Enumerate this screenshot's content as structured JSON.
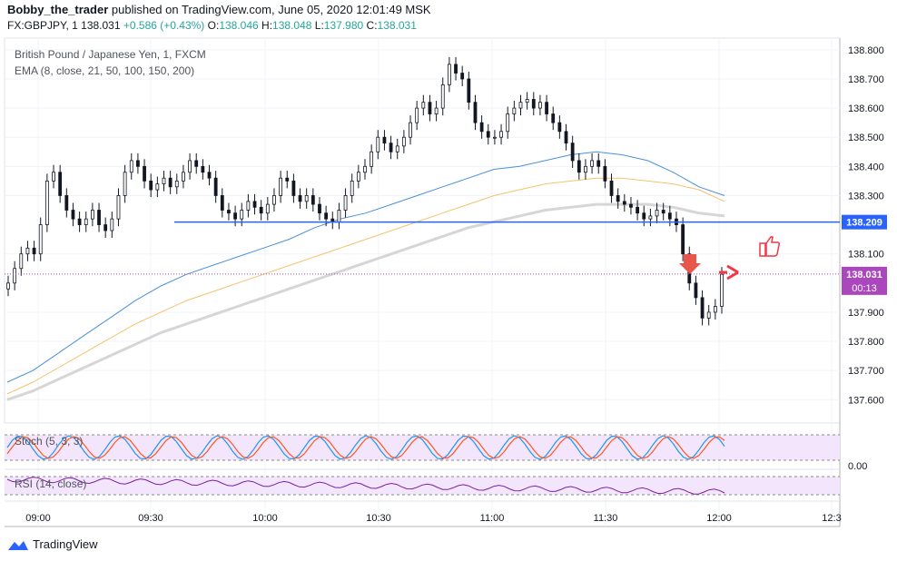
{
  "header": {
    "author": "Bobby_the_trader",
    "published": "published on TradingView.com, June 05, 2020 12:01:49 MSK",
    "symbol": "FX:GBPJPY, 1",
    "last": "138.031",
    "change": "+0.586 (+0.43%)",
    "o_label": "O:",
    "o": "138.046",
    "h_label": "H:",
    "h": "138.048",
    "l_label": "L:",
    "l": "137.980",
    "c_label": "C:",
    "c": "138.031"
  },
  "legend": {
    "instrument": "British Pound / Japanese Yen, 1, FXCM",
    "ema": "EMA (8, close, 21, 50, 100, 150, 200)",
    "stoch": "Stoch (5, 3, 3)",
    "rsi": "RSI (14, close)"
  },
  "footer": {
    "brand": "TradingView"
  },
  "colors": {
    "up": "#26a69a",
    "candle": "#131722",
    "ema_blue": "#4a90d9",
    "ema_orange": "#f5c26b",
    "ema_gray": "#d6d6d6",
    "level": "#2962ff",
    "price_tag": "#ab47bc",
    "arrow": "#f23645"
  },
  "chart_data": {
    "type": "candlestick",
    "price_axis_ticks": [
      "138.800",
      "138.700",
      "138.600",
      "138.500",
      "138.400",
      "138.300",
      "138.209",
      "138.100",
      "138.031",
      "137.900",
      "137.800",
      "137.700",
      "137.600"
    ],
    "time_axis_ticks": [
      "09:00",
      "09:30",
      "10:00",
      "10:30",
      "11:00",
      "11:30",
      "12:00",
      "12:3"
    ],
    "ylim": [
      137.52,
      138.84
    ],
    "horizontal_level": {
      "value": 138.209,
      "label": "138.209"
    },
    "last_price": {
      "value": 138.031,
      "label": "138.031",
      "countdown": "00:13"
    },
    "stoch_axis_label": "0.00",
    "close_series": [
      138.0,
      138.05,
      138.1,
      138.12,
      138.1,
      138.2,
      138.35,
      138.38,
      138.3,
      138.25,
      138.22,
      138.2,
      138.22,
      138.25,
      138.2,
      138.18,
      138.22,
      138.3,
      138.38,
      138.42,
      138.4,
      138.35,
      138.32,
      138.34,
      138.36,
      138.33,
      138.35,
      138.38,
      138.42,
      138.4,
      138.38,
      138.36,
      138.3,
      138.25,
      138.24,
      138.22,
      138.25,
      138.28,
      138.26,
      138.24,
      138.27,
      138.3,
      138.36,
      138.35,
      138.3,
      138.28,
      138.3,
      138.27,
      138.24,
      138.22,
      138.21,
      138.25,
      138.3,
      138.35,
      138.38,
      138.4,
      138.45,
      138.5,
      138.48,
      138.45,
      138.47,
      138.5,
      138.55,
      138.6,
      138.62,
      138.58,
      138.6,
      138.68,
      138.75,
      138.72,
      138.7,
      138.62,
      138.55,
      138.52,
      138.5,
      138.5,
      138.52,
      138.58,
      138.6,
      138.62,
      138.63,
      138.6,
      138.62,
      138.58,
      138.55,
      138.52,
      138.48,
      138.42,
      138.38,
      138.4,
      138.42,
      138.4,
      138.35,
      138.3,
      138.28,
      138.27,
      138.26,
      138.24,
      138.22,
      138.23,
      138.25,
      138.24,
      138.22,
      138.2,
      138.1,
      138.0,
      137.95,
      137.88,
      137.9,
      137.92,
      138.03
    ],
    "ema_series": {
      "blue": [
        137.66,
        137.7,
        137.76,
        137.82,
        137.88,
        137.94,
        137.99,
        138.03,
        138.06,
        138.09,
        138.12,
        138.15,
        138.19,
        138.22,
        138.24,
        138.27,
        138.3,
        138.33,
        138.36,
        138.39,
        138.4,
        138.42,
        138.44,
        138.45,
        138.44,
        138.42,
        138.38,
        138.33,
        138.3
      ],
      "orange": [
        137.62,
        137.66,
        137.71,
        137.76,
        137.81,
        137.86,
        137.9,
        137.94,
        137.97,
        138.0,
        138.03,
        138.06,
        138.09,
        138.12,
        138.15,
        138.18,
        138.21,
        138.24,
        138.27,
        138.3,
        138.32,
        138.34,
        138.35,
        138.36,
        138.36,
        138.35,
        138.34,
        138.32,
        138.28
      ],
      "gray": [
        137.6,
        137.63,
        137.67,
        137.71,
        137.75,
        137.79,
        137.83,
        137.86,
        137.89,
        137.92,
        137.95,
        137.98,
        138.01,
        138.04,
        138.07,
        138.1,
        138.13,
        138.16,
        138.19,
        138.21,
        138.23,
        138.25,
        138.26,
        138.27,
        138.27,
        138.27,
        138.26,
        138.24,
        138.23
      ]
    }
  }
}
